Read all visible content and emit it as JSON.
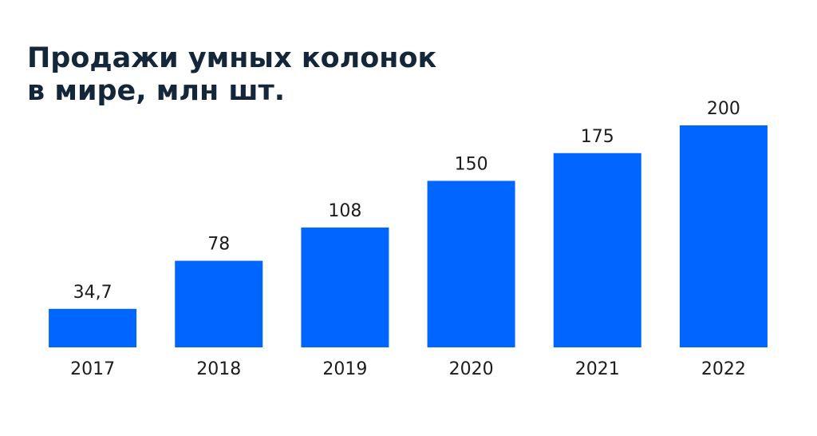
{
  "chart_data": {
    "type": "bar",
    "title": [
      "Продажи умных колонок",
      "в мире, млн шт."
    ],
    "categories": [
      "2017",
      "2018",
      "2019",
      "2020",
      "2021",
      "2022"
    ],
    "values": [
      34.7,
      78,
      108,
      150,
      175,
      200
    ],
    "value_labels": [
      "34,7",
      "78",
      "108",
      "150",
      "175",
      "200"
    ],
    "color": "#0066ff"
  }
}
